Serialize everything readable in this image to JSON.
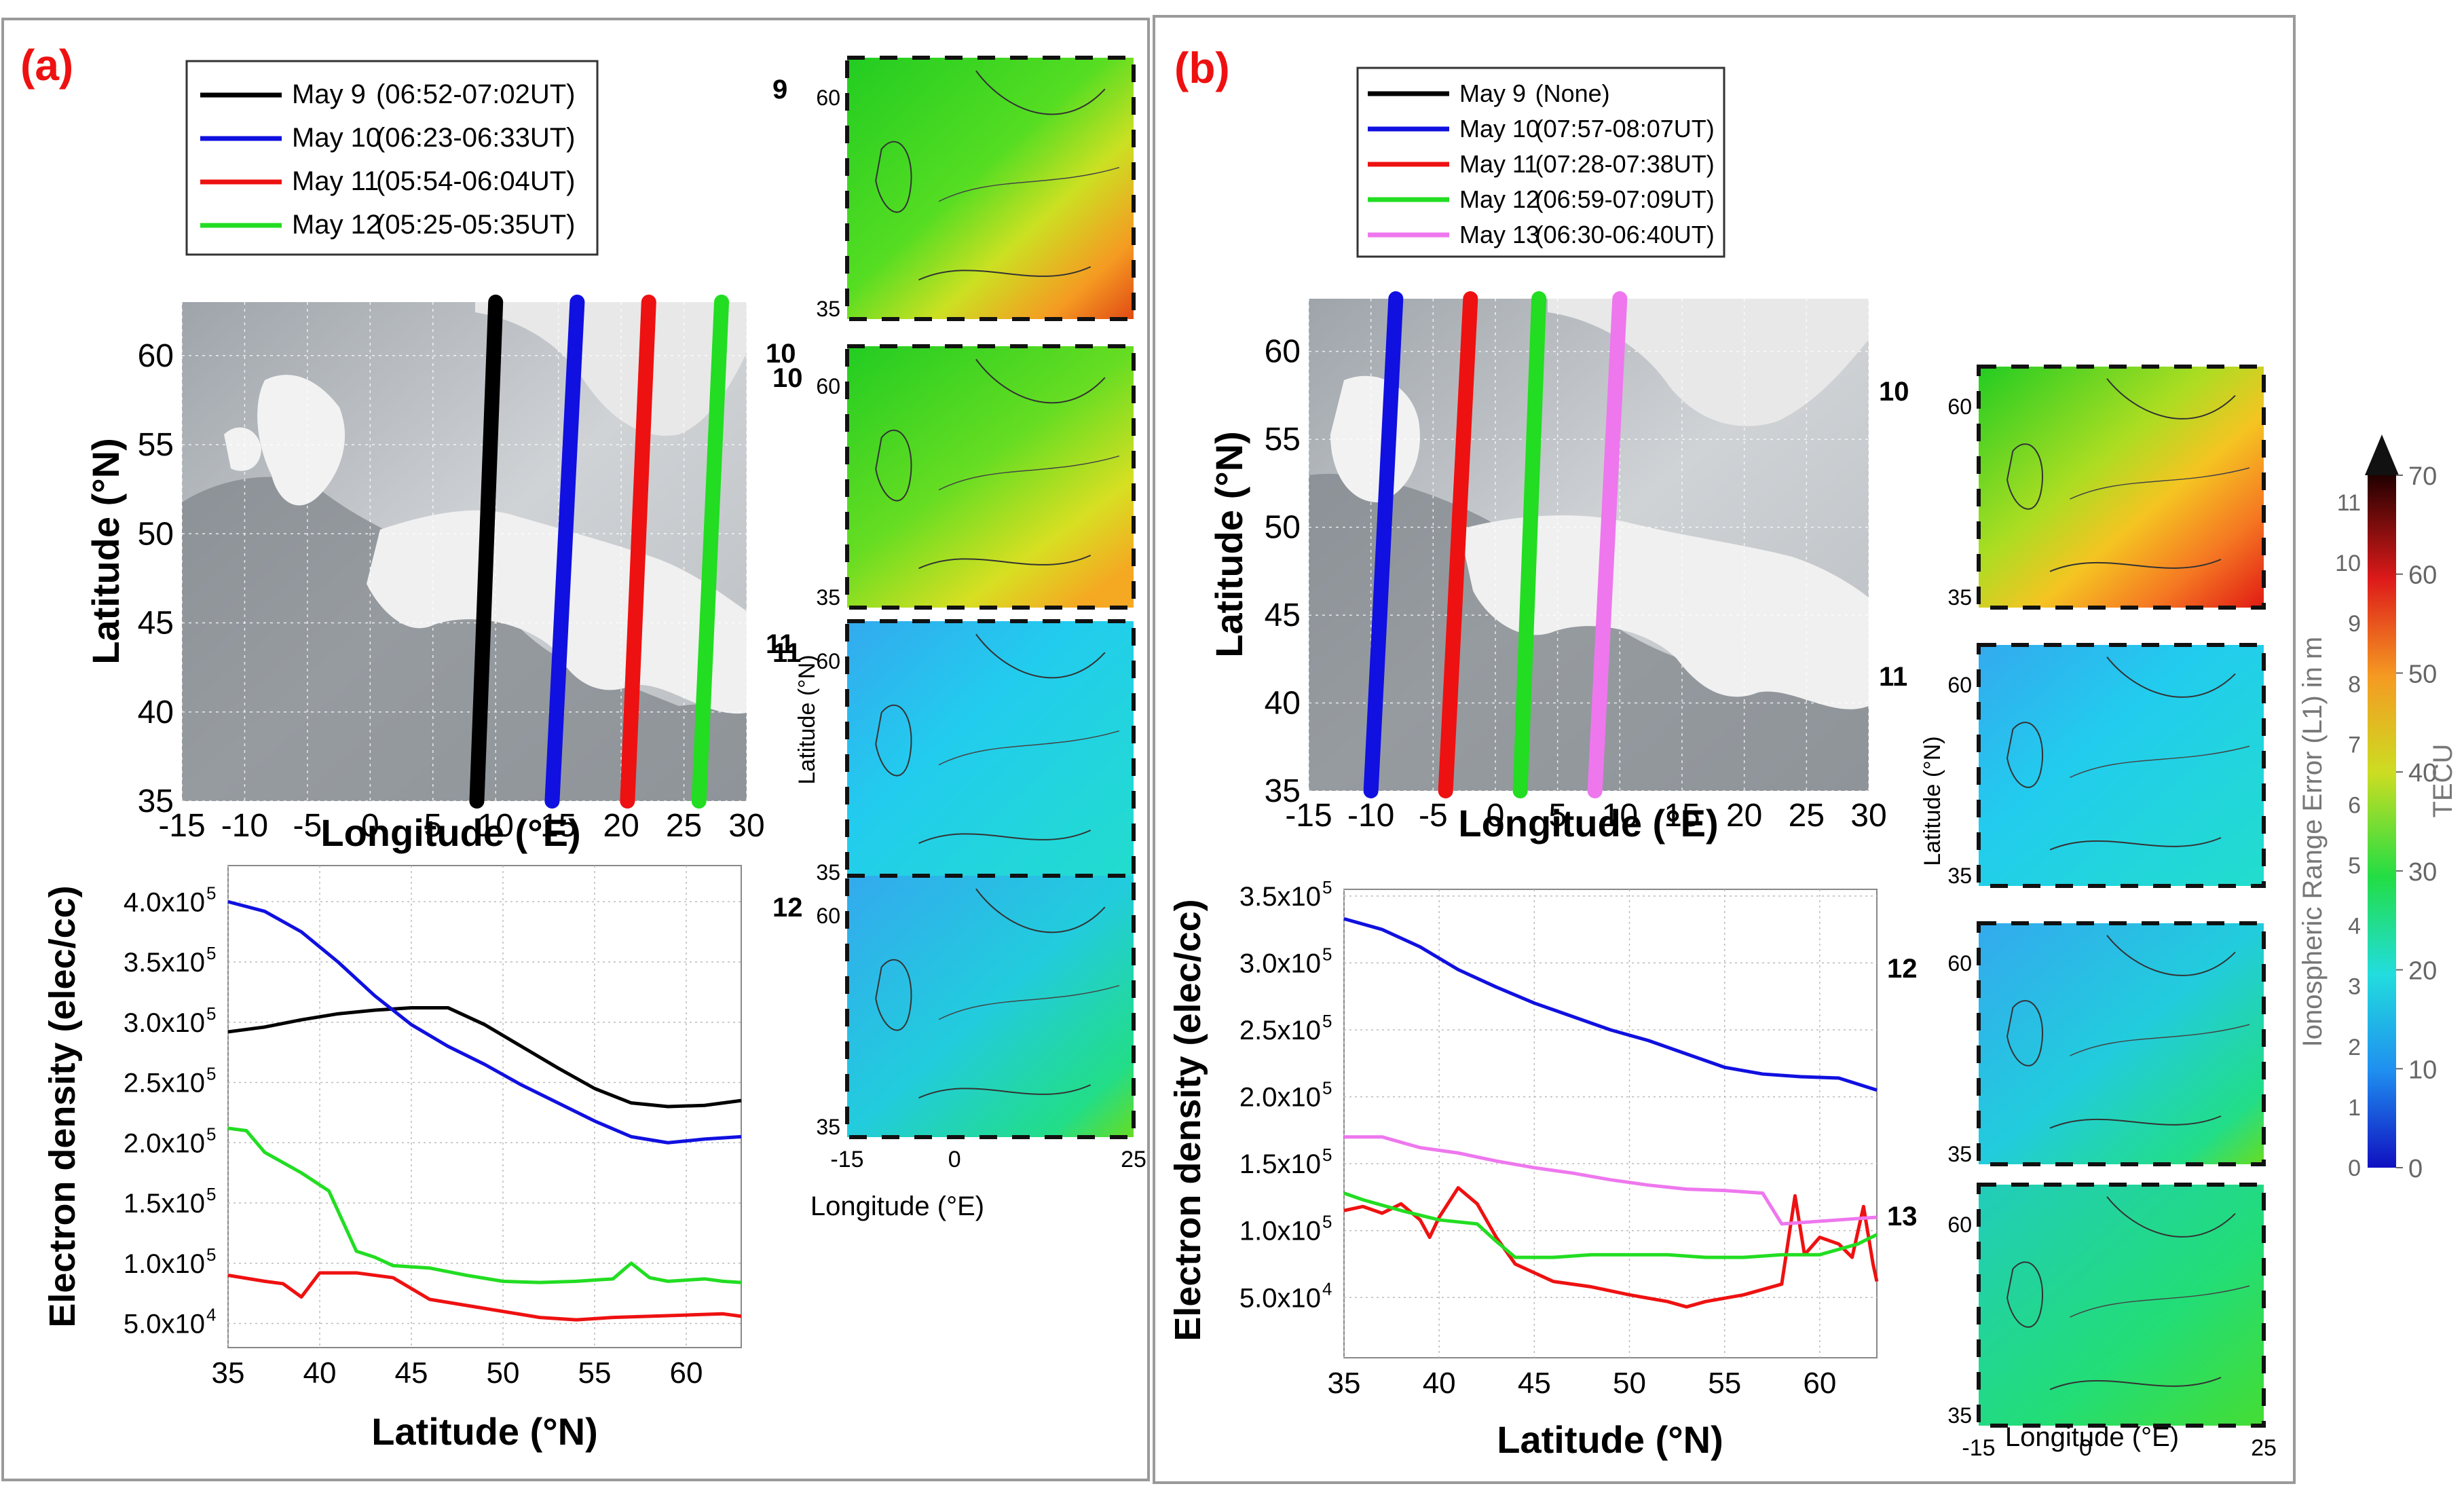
{
  "panels": [
    {
      "label": "(a)",
      "legend": [
        {
          "day": "May 9",
          "time": "(06:52-07:02UT)",
          "color": "#000000"
        },
        {
          "day": "May 10",
          "time": "(06:23-06:33UT)",
          "color": "#1010e0"
        },
        {
          "day": "May 11",
          "time": "(05:54-06:04UT)",
          "color": "#ee1111"
        },
        {
          "day": "May 12",
          "time": "(05:25-05:35UT)",
          "color": "#22dd22"
        }
      ],
      "map_day_labels": [
        "10",
        "11"
      ],
      "small_map_day_labels": [
        "9",
        "10",
        "11",
        "12"
      ],
      "small_map_fields": [
        "warm",
        "warm2",
        "cool",
        "cool2"
      ],
      "small_map_ylabel": "Latitude (°N)",
      "small_map_xlabel": "Longitude (°E)",
      "small_map_xticks": [
        "-15",
        "0",
        "25"
      ],
      "small_map_yticks": [
        "60",
        "35"
      ]
    },
    {
      "label": "(b)",
      "legend": [
        {
          "day": "May 9",
          "time": "(None)",
          "color": "#000000"
        },
        {
          "day": "May 10",
          "time": "(07:57-08:07UT)",
          "color": "#1010e0"
        },
        {
          "day": "May 11",
          "time": "(07:28-07:38UT)",
          "color": "#ee1111"
        },
        {
          "day": "May 12",
          "time": "(06:59-07:09UT)",
          "color": "#22dd22"
        },
        {
          "day": "May 13",
          "time": "(06:30-06:40UT)",
          "color": "#ee77ee"
        }
      ],
      "map_day_labels": [
        "10",
        "11",
        "12",
        "13"
      ],
      "small_map_fields": [
        "hot",
        "cool",
        "cool2",
        "cool3"
      ],
      "small_map_ylabel": "Latitude (°N)",
      "small_map_xlabel": "Longitude (°E)",
      "small_map_xticks": [
        "-15",
        "0",
        "25"
      ],
      "small_map_yticks": [
        "60",
        "35"
      ]
    }
  ],
  "colorbar": {
    "label_left": "Ionospheric Range Error (L1) in m",
    "label_right": "TECU",
    "ticks_m": [
      "0",
      "1",
      "2",
      "3",
      "4",
      "5",
      "6",
      "7",
      "8",
      "9",
      "10",
      "11"
    ],
    "ticks_tecu": [
      "0",
      "10",
      "20",
      "30",
      "40",
      "50",
      "60",
      "70"
    ]
  },
  "chart_data": [
    {
      "id": "a-map",
      "type": "line",
      "title": "",
      "xlabel": "Longitude (°E)",
      "ylabel": "Latitude (°N)",
      "xlim": [
        -15,
        30
      ],
      "ylim": [
        35,
        63
      ],
      "xticks": [
        -15,
        -10,
        -5,
        0,
        5,
        10,
        15,
        20,
        25,
        30
      ],
      "yticks": [
        35,
        40,
        45,
        50,
        55,
        60
      ],
      "series": [
        {
          "name": "May 9",
          "color": "#000000",
          "x": [
            8.5,
            10.0
          ],
          "y": [
            35,
            63
          ]
        },
        {
          "name": "May 10",
          "color": "#1010e0",
          "x": [
            14.5,
            16.5
          ],
          "y": [
            35,
            63
          ]
        },
        {
          "name": "May 11",
          "color": "#ee1111",
          "x": [
            20.5,
            22.2
          ],
          "y": [
            35,
            63
          ]
        },
        {
          "name": "May 12",
          "color": "#22dd22",
          "x": [
            26.2,
            28.0
          ],
          "y": [
            35,
            63
          ]
        }
      ]
    },
    {
      "id": "a-density",
      "type": "line",
      "title": "",
      "xlabel": "Latitude (°N)",
      "ylabel": "Electron density (elec/cc)",
      "xlim": [
        35,
        63
      ],
      "ylim": [
        30000,
        430000
      ],
      "xticks": [
        35,
        40,
        45,
        50,
        55,
        60
      ],
      "ytick_values": [
        50000,
        100000,
        150000,
        200000,
        250000,
        300000,
        350000,
        400000
      ],
      "ytick_mant": [
        "5.0x10",
        "1.0x10",
        "1.5x10",
        "2.0x10",
        "2.5x10",
        "3.0x10",
        "3.5x10",
        "4.0x10"
      ],
      "ytick_exp": [
        "4",
        "5",
        "5",
        "5",
        "5",
        "5",
        "5",
        "5"
      ],
      "series": [
        {
          "name": "May 9",
          "color": "#000000",
          "x": [
            35,
            37,
            39,
            41,
            43,
            45,
            47,
            49,
            51,
            53,
            55,
            57,
            59,
            61,
            63
          ],
          "y": [
            292000,
            296000,
            302000,
            307000,
            310000,
            312000,
            312000,
            298000,
            280000,
            262000,
            245000,
            233000,
            230000,
            231000,
            235000
          ]
        },
        {
          "name": "May 10",
          "color": "#1010e0",
          "x": [
            35,
            37,
            39,
            41,
            43,
            45,
            47,
            49,
            51,
            53,
            55,
            57,
            59,
            61,
            63
          ],
          "y": [
            400000,
            392000,
            375000,
            350000,
            322000,
            298000,
            280000,
            265000,
            248000,
            233000,
            218000,
            205000,
            200000,
            203000,
            205000
          ]
        },
        {
          "name": "May 11",
          "color": "#ee1111",
          "x": [
            35,
            37,
            38,
            39,
            40,
            42,
            44,
            46,
            48,
            50,
            52,
            54,
            56,
            58,
            60,
            62,
            63
          ],
          "y": [
            90000,
            85000,
            83000,
            72000,
            92000,
            92000,
            88000,
            70000,
            65000,
            60000,
            55000,
            53000,
            55000,
            56000,
            57000,
            58000,
            56000
          ]
        },
        {
          "name": "May 12",
          "color": "#22dd22",
          "x": [
            35,
            36,
            37,
            39,
            40.5,
            42,
            43,
            44,
            46,
            48,
            50,
            52,
            54,
            56,
            57,
            58,
            59,
            61,
            62,
            63
          ],
          "y": [
            212000,
            210000,
            192000,
            175000,
            160000,
            110000,
            105000,
            98000,
            96000,
            90000,
            85000,
            84000,
            85000,
            87000,
            100000,
            88000,
            85000,
            87000,
            85000,
            84000
          ]
        }
      ]
    },
    {
      "id": "b-map",
      "type": "line",
      "title": "",
      "xlabel": "Longitude (°E)",
      "ylabel": "Latitude (°N)",
      "xlim": [
        -15,
        30
      ],
      "ylim": [
        35,
        63
      ],
      "xticks": [
        -15,
        -10,
        -5,
        0,
        5,
        10,
        15,
        20,
        25,
        30
      ],
      "yticks": [
        35,
        40,
        45,
        50,
        55,
        60
      ],
      "series": [
        {
          "name": "May 10",
          "color": "#1010e0",
          "x": [
            -10.0,
            -8.0
          ],
          "y": [
            35,
            63
          ]
        },
        {
          "name": "May 11",
          "color": "#ee1111",
          "x": [
            -4.0,
            -2.0
          ],
          "y": [
            35,
            63
          ]
        },
        {
          "name": "May 12",
          "color": "#22dd22",
          "x": [
            2.0,
            3.5
          ],
          "y": [
            35,
            63
          ]
        },
        {
          "name": "May 13",
          "color": "#ee77ee",
          "x": [
            8.0,
            10.0
          ],
          "y": [
            35,
            63
          ]
        }
      ]
    },
    {
      "id": "b-density",
      "type": "line",
      "title": "",
      "xlabel": "Latitude (°N)",
      "ylabel": "Electron density (elec/cc)",
      "xlim": [
        35,
        63
      ],
      "ylim": [
        5000,
        355000
      ],
      "xticks": [
        35,
        40,
        45,
        50,
        55,
        60
      ],
      "ytick_values": [
        50000,
        100000,
        150000,
        200000,
        250000,
        300000,
        350000
      ],
      "ytick_mant": [
        "5.0x10",
        "1.0x10",
        "1.5x10",
        "2.0x10",
        "2.5x10",
        "3.0x10",
        "3.5x10"
      ],
      "ytick_exp": [
        "4",
        "5",
        "5",
        "5",
        "5",
        "5",
        "5"
      ],
      "series": [
        {
          "name": "May 10",
          "color": "#1010e0",
          "x": [
            35,
            37,
            39,
            41,
            43,
            45,
            47,
            49,
            51,
            53,
            55,
            57,
            59,
            61,
            63
          ],
          "y": [
            333000,
            325000,
            312000,
            295000,
            282000,
            270000,
            260000,
            250000,
            242000,
            232000,
            222000,
            217000,
            215000,
            214000,
            205000
          ]
        },
        {
          "name": "May 11",
          "color": "#ee1111",
          "x": [
            35,
            36,
            37,
            38,
            39,
            39.5,
            40,
            41,
            42,
            43,
            44,
            46,
            48,
            50,
            52,
            53,
            54,
            56,
            58,
            58.7,
            59.2,
            60,
            61,
            61.7,
            62.3,
            62.8,
            63
          ],
          "y": [
            115000,
            118000,
            113000,
            120000,
            108000,
            95000,
            110000,
            132000,
            120000,
            95000,
            75000,
            62000,
            58000,
            52000,
            47000,
            43000,
            47000,
            52000,
            60000,
            126000,
            82000,
            95000,
            90000,
            80000,
            118000,
            75000,
            62000
          ]
        },
        {
          "name": "May 12",
          "color": "#22dd22",
          "x": [
            35,
            36,
            38,
            40,
            42,
            43,
            44,
            46,
            48,
            50,
            52,
            54,
            56,
            58,
            60,
            62,
            63
          ],
          "y": [
            128000,
            123000,
            115000,
            108000,
            105000,
            92000,
            80000,
            80000,
            82000,
            82000,
            82000,
            80000,
            80000,
            82000,
            82000,
            90000,
            97000
          ]
        },
        {
          "name": "May 13",
          "color": "#ee77ee",
          "x": [
            35,
            37,
            39,
            41,
            43,
            45,
            47,
            49,
            51,
            53,
            55,
            57,
            58,
            59,
            61,
            63
          ],
          "y": [
            170000,
            170000,
            162000,
            158000,
            152000,
            147000,
            143000,
            138000,
            134000,
            131000,
            130000,
            128000,
            105000,
            106000,
            108000,
            110000
          ]
        }
      ]
    }
  ]
}
